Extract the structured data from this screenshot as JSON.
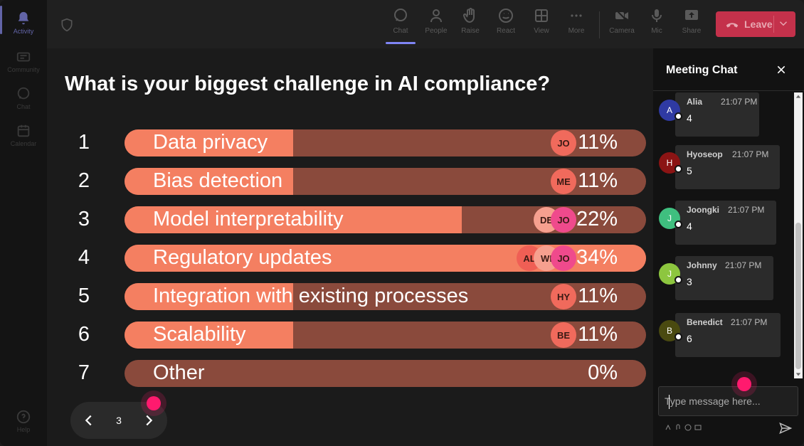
{
  "rail": {
    "items": [
      {
        "label": "Activity",
        "icon": "bell-icon",
        "active": true
      },
      {
        "label": "Community",
        "icon": "community-icon",
        "active": false
      },
      {
        "label": "Chat",
        "icon": "chat-icon",
        "active": false
      },
      {
        "label": "Calendar",
        "icon": "calendar-icon",
        "active": false
      }
    ],
    "help": "Help"
  },
  "toolbar": {
    "chat": "Chat",
    "people": "People",
    "raise": "Raise",
    "react": "React",
    "view": "View",
    "more": "More",
    "camera": "Camera",
    "mic": "Mic",
    "share": "Share",
    "leave": "Leave"
  },
  "poll": {
    "question": "What is your biggest challenge in AI compliance?",
    "options": [
      {
        "num": "1",
        "label": "Data privacy",
        "pct": "11%",
        "value": 0.11,
        "voters": [
          "JO"
        ]
      },
      {
        "num": "2",
        "label": "Bias detection",
        "pct": "11%",
        "value": 0.11,
        "voters": [
          "ME"
        ]
      },
      {
        "num": "3",
        "label": "Model interpretability",
        "pct": "22%",
        "value": 0.22,
        "voters": [
          "DE",
          "JO"
        ]
      },
      {
        "num": "4",
        "label": "Regulatory updates",
        "pct": "34%",
        "value": 0.34,
        "voters": [
          "AL",
          "WI",
          "JO"
        ]
      },
      {
        "num": "5",
        "label": "Integration with existing processes",
        "pct": "11%",
        "value": 0.11,
        "voters": [
          "HY"
        ]
      },
      {
        "num": "6",
        "label": "Scalability",
        "pct": "11%",
        "value": 0.11,
        "voters": [
          "BE"
        ]
      },
      {
        "num": "7",
        "label": "Other",
        "pct": "0%",
        "value": 0.0,
        "voters": []
      }
    ]
  },
  "pager": {
    "page": "3"
  },
  "chat": {
    "title": "Meeting Chat",
    "placeholder": "Type message here...",
    "messages": [
      {
        "initial": "A",
        "name": "Alia",
        "time": "21:07 PM",
        "text": "4",
        "color": "#2f3aa3"
      },
      {
        "initial": "H",
        "name": "Hyoseop",
        "time": "21:07 PM",
        "text": "5",
        "color": "#8b1414"
      },
      {
        "initial": "J",
        "name": "Joongki",
        "time": "21:07 PM",
        "text": "4",
        "color": "#3fbf7f"
      },
      {
        "initial": "J",
        "name": "Johnny",
        "time": "21:07 PM",
        "text": "3",
        "color": "#8dc63f"
      },
      {
        "initial": "B",
        "name": "Benedict",
        "time": "21:07 PM",
        "text": "6",
        "color": "#4a4a10"
      }
    ]
  },
  "colors": {
    "accent": "#6264a7",
    "bar_fill": "#f47f61",
    "bar_track": "#8a4a3c",
    "leave": "#c4314b",
    "cursor": "#ff1a6e"
  }
}
